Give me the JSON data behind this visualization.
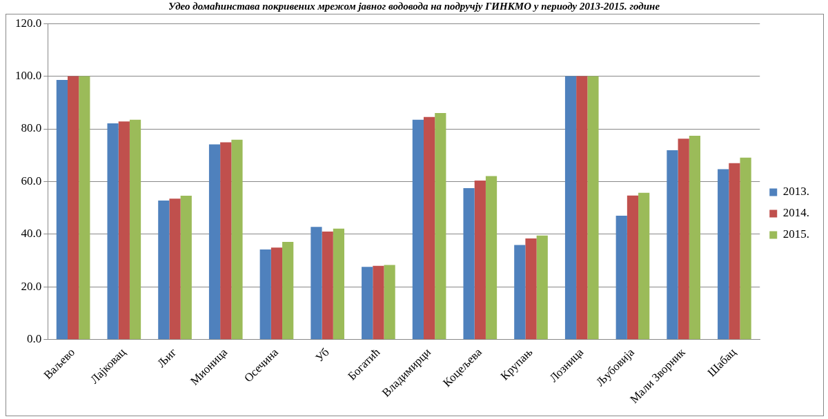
{
  "chart_data": {
    "type": "bar",
    "title": "Удео домаћинстава покривених мрежом јавног водовода на подручју ГИНКМО у периоду 2013-2015. године",
    "categories": [
      "Ваљево",
      "Лајковац",
      "Љиг",
      "Мионица",
      "Осечина",
      "Уб",
      "Богатић",
      "Владимирци",
      "Коцељева",
      "Крупањ",
      "Лозница",
      "Љубовија",
      "Мали Зворник",
      "Шабац"
    ],
    "series": [
      {
        "name": "2013.",
        "color": "#4f81bd",
        "values": [
          98.6,
          82.1,
          52.8,
          74.1,
          34.2,
          42.8,
          27.6,
          83.5,
          57.5,
          35.9,
          100,
          47.0,
          71.9,
          64.7
        ]
      },
      {
        "name": "2014.",
        "color": "#c0504d",
        "values": [
          100,
          82.8,
          53.5,
          74.9,
          34.9,
          41.0,
          28.0,
          84.5,
          60.4,
          38.4,
          100,
          54.7,
          76.3,
          67.0
        ]
      },
      {
        "name": "2015.",
        "color": "#9bbb59",
        "values": [
          100,
          83.5,
          54.6,
          75.9,
          37.1,
          42.1,
          28.3,
          86.0,
          62.1,
          39.5,
          100,
          55.7,
          77.4,
          69.1
        ]
      }
    ],
    "ylim": [
      0,
      120
    ],
    "yticks": [
      {
        "value": 0,
        "label": "0.0"
      },
      {
        "value": 20,
        "label": "20.0"
      },
      {
        "value": 40,
        "label": "40.0"
      },
      {
        "value": 60,
        "label": "60.0"
      },
      {
        "value": 80,
        "label": "80.0"
      },
      {
        "value": 100,
        "label": "100.0"
      },
      {
        "value": 120,
        "label": "120.0"
      }
    ],
    "grid": "y",
    "legend": "right"
  }
}
